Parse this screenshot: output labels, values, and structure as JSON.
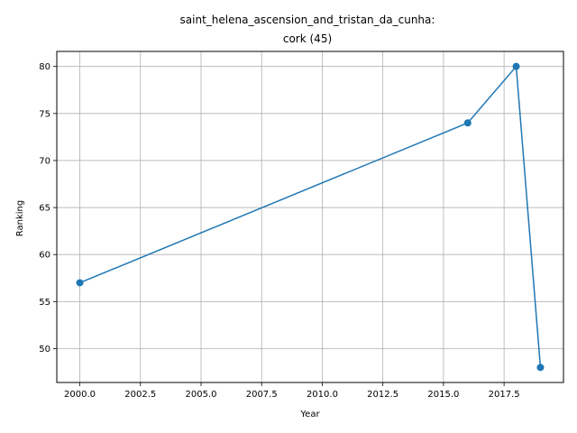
{
  "chart_data": {
    "type": "line",
    "title_lines": [
      "saint_helena_ascension_and_tristan_da_cunha:",
      "cork (45)"
    ],
    "xlabel": "Year",
    "ylabel": "Ranking",
    "x": [
      2000,
      2016,
      2018,
      2019
    ],
    "series": [
      {
        "values": [
          57,
          74,
          80,
          48
        ],
        "color": "#1f77b4"
      }
    ],
    "xlim": [
      1999.05,
      2019.95
    ],
    "ylim": [
      46.4,
      81.6
    ],
    "xticks": [
      2000,
      2002.5,
      2005,
      2007.5,
      2010,
      2012.5,
      2015,
      2017.5
    ],
    "xtick_labels": [
      "2000.0",
      "2002.5",
      "2005.0",
      "2007.5",
      "2010.0",
      "2012.5",
      "2015.0",
      "2017.5"
    ],
    "yticks": [
      50,
      55,
      60,
      65,
      70,
      75,
      80
    ],
    "ytick_labels": [
      "50",
      "55",
      "60",
      "65",
      "70",
      "75",
      "80"
    ],
    "grid": true,
    "grid_color": "#b0b0b0",
    "marker": "circle"
  }
}
